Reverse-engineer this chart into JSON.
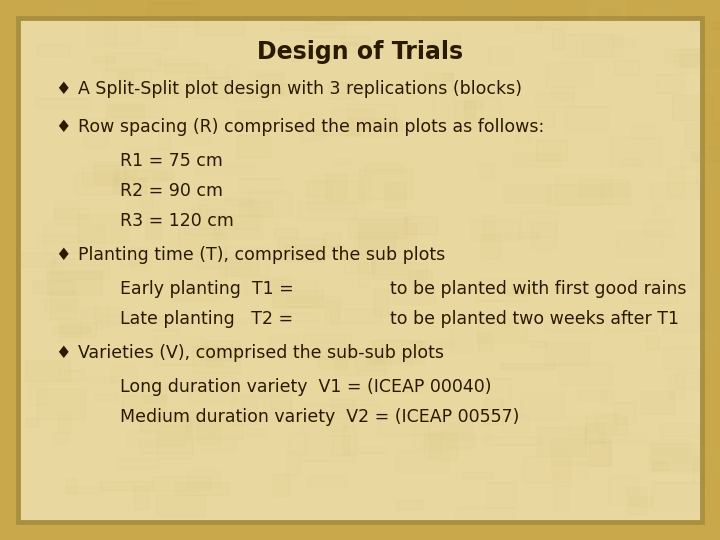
{
  "title": "Design of Trials",
  "bg_outer_color": "#C8A84B",
  "bg_inner_color": "#E8D8A0",
  "border_color": "#A89040",
  "title_color": "#2A1A00",
  "text_color": "#2A1A00",
  "title_fontsize": 17,
  "body_fontsize": 12.5,
  "bullet_char": "♦",
  "bullet1": "A Split-Split plot design with 3 replications (blocks)",
  "bullet2": "Row spacing (R) comprised the main plots as follows:",
  "sub_items_r": [
    "R1 = 75 cm",
    "R2 = 90 cm",
    "R3 = 120 cm"
  ],
  "bullet3": "Planting time (T), comprised the sub plots",
  "sub_items_t_left": [
    "Early planting  T1 =",
    "Late planting   T2 ="
  ],
  "sub_items_t_right": [
    "to be planted with first good rains",
    "to be planted two weeks after T1"
  ],
  "bullet4": "Varieties (V), comprised the sub-sub plots",
  "sub_items_v": [
    "Long duration variety  V1 = (ICEAP 00040)",
    "Medium duration variety  V2 = (ICEAP 00557)"
  ]
}
